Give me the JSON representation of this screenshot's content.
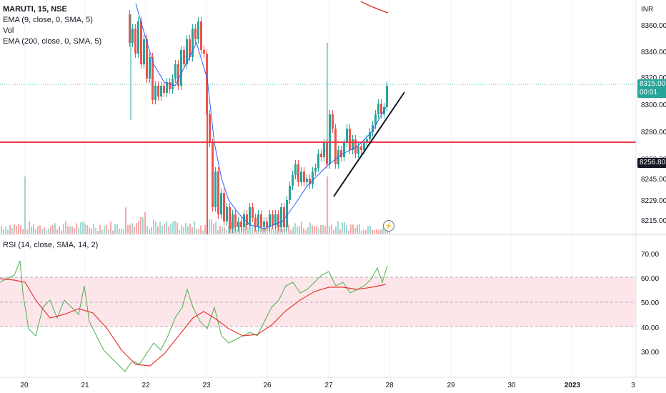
{
  "legend": {
    "symbol": "MARUTI, 15, NSE",
    "indicators": [
      "EMA (9, close, 0, SMA, 5)",
      "Vol",
      "EMA (200, close, 0, SMA, 5)"
    ],
    "rsi": "RSI (14, close, SMA, 14, 2)"
  },
  "price_axis": {
    "currency": "INR",
    "ticks": [
      "8360.00",
      "8340.00",
      "8320.00",
      "8300.00",
      "8280.00",
      "8260.00",
      "8245.00",
      "8229.00",
      "8215.00"
    ]
  },
  "rsi_axis": {
    "ticks": [
      "70.00",
      "60.00",
      "50.00",
      "40.00",
      "30.00"
    ]
  },
  "time_axis": {
    "ticks": [
      "20",
      "21",
      "22",
      "23",
      "26",
      "27",
      "28",
      "29",
      "30",
      "2023",
      "3"
    ]
  },
  "tags": {
    "last_price": "8315.00",
    "countdown": "00:01",
    "level_price": "8256.80"
  },
  "flash_icon": "lightning-icon",
  "colors": {
    "up": "#26a69a",
    "down": "#ef5350",
    "ema": "#2962ff",
    "rsi": "#4caf50",
    "rsi_ma": "#e53935",
    "level": "#f23645"
  }
}
